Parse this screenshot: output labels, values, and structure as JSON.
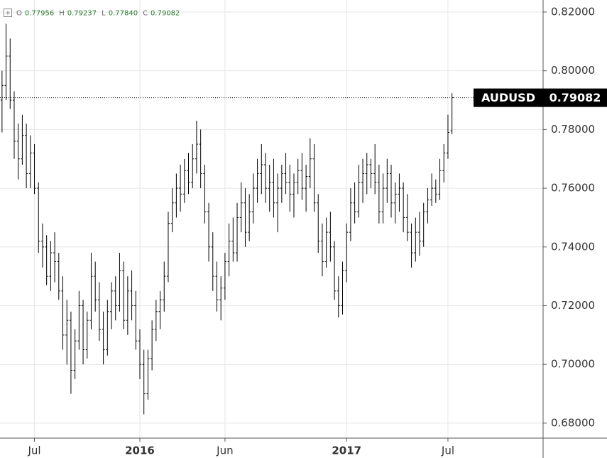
{
  "chart_data": {
    "type": "ohlc",
    "symbol": "AUDUSD",
    "legend_labels": [
      "O",
      "H",
      "L",
      "C"
    ],
    "legend_values": [
      "0.77956",
      "0.79237",
      "0.77840",
      "0.79082"
    ],
    "categories": [
      null,
      null,
      null,
      null,
      null,
      null,
      null,
      null,
      "Jul",
      null,
      null,
      null,
      null,
      null,
      null,
      null,
      null,
      null,
      null,
      null,
      null,
      null,
      null,
      null,
      null,
      null,
      null,
      null,
      null,
      null,
      null,
      null,
      null,
      null,
      "2016",
      null,
      null,
      null,
      null,
      null,
      null,
      null,
      null,
      null,
      null,
      null,
      null,
      null,
      null,
      null,
      null,
      null,
      null,
      null,
      null,
      "Jun",
      null,
      null,
      null,
      null,
      null,
      null,
      null,
      null,
      null,
      null,
      null,
      null,
      null,
      null,
      null,
      null,
      null,
      null,
      null,
      null,
      null,
      null,
      null,
      null,
      null,
      null,
      null,
      null,
      null,
      "2017",
      null,
      null,
      null,
      null,
      null,
      null,
      null,
      null,
      null,
      null,
      null,
      null,
      null,
      null,
      null,
      null,
      null,
      null,
      null,
      null,
      null,
      null,
      null,
      null,
      "Jul",
      null
    ],
    "open": [
      0.79,
      0.795,
      0.805,
      0.79,
      0.776,
      0.77,
      0.778,
      0.765,
      0.772,
      0.76,
      0.742,
      0.74,
      0.73,
      0.738,
      0.735,
      0.725,
      0.71,
      0.715,
      0.698,
      0.708,
      0.72,
      0.705,
      0.715,
      0.73,
      0.722,
      0.712,
      0.705,
      0.718,
      0.725,
      0.72,
      0.732,
      0.715,
      0.725,
      0.72,
      0.708,
      0.7,
      0.69,
      0.702,
      0.712,
      0.718,
      0.722,
      0.73,
      0.748,
      0.755,
      0.76,
      0.758,
      0.766,
      0.762,
      0.77,
      0.775,
      0.765,
      0.752,
      0.74,
      0.73,
      0.722,
      0.726,
      0.735,
      0.742,
      0.738,
      0.75,
      0.755,
      0.745,
      0.752,
      0.76,
      0.765,
      0.768,
      0.76,
      0.762,
      0.755,
      0.76,
      0.765,
      0.762,
      0.758,
      0.762,
      0.766,
      0.76,
      0.764,
      0.77,
      0.755,
      0.742,
      0.735,
      0.745,
      0.74,
      0.725,
      0.72,
      0.732,
      0.745,
      0.755,
      0.752,
      0.762,
      0.765,
      0.768,
      0.765,
      0.762,
      0.752,
      0.76,
      0.765,
      0.755,
      0.758,
      0.76,
      0.75,
      0.745,
      0.738,
      0.745,
      0.742,
      0.752,
      0.756,
      0.76,
      0.758,
      0.766,
      0.772,
      0.77956
    ],
    "high": [
      0.8,
      0.816,
      0.811,
      0.793,
      0.782,
      0.785,
      0.782,
      0.778,
      0.775,
      0.762,
      0.748,
      0.744,
      0.742,
      0.745,
      0.738,
      0.73,
      0.722,
      0.718,
      0.712,
      0.725,
      0.722,
      0.718,
      0.738,
      0.735,
      0.728,
      0.718,
      0.722,
      0.728,
      0.73,
      0.738,
      0.735,
      0.73,
      0.732,
      0.725,
      0.712,
      0.705,
      0.705,
      0.715,
      0.722,
      0.725,
      0.735,
      0.752,
      0.76,
      0.765,
      0.768,
      0.77,
      0.772,
      0.775,
      0.783,
      0.78,
      0.768,
      0.755,
      0.745,
      0.735,
      0.73,
      0.738,
      0.748,
      0.75,
      0.755,
      0.762,
      0.76,
      0.758,
      0.765,
      0.77,
      0.775,
      0.772,
      0.768,
      0.77,
      0.765,
      0.768,
      0.772,
      0.768,
      0.765,
      0.77,
      0.772,
      0.768,
      0.777,
      0.775,
      0.758,
      0.748,
      0.75,
      0.752,
      0.742,
      0.73,
      0.735,
      0.748,
      0.76,
      0.762,
      0.768,
      0.77,
      0.772,
      0.77,
      0.775,
      0.768,
      0.765,
      0.77,
      0.768,
      0.762,
      0.765,
      0.762,
      0.758,
      0.748,
      0.75,
      0.752,
      0.755,
      0.76,
      0.765,
      0.763,
      0.77,
      0.775,
      0.785,
      0.79237
    ],
    "low": [
      0.779,
      0.79,
      0.787,
      0.77,
      0.763,
      0.768,
      0.76,
      0.76,
      0.758,
      0.738,
      0.733,
      0.727,
      0.725,
      0.728,
      0.722,
      0.705,
      0.7,
      0.69,
      0.695,
      0.705,
      0.7,
      0.702,
      0.712,
      0.718,
      0.708,
      0.7,
      0.703,
      0.712,
      0.715,
      0.718,
      0.712,
      0.71,
      0.715,
      0.705,
      0.695,
      0.683,
      0.688,
      0.698,
      0.708,
      0.712,
      0.718,
      0.728,
      0.745,
      0.75,
      0.752,
      0.755,
      0.758,
      0.76,
      0.765,
      0.76,
      0.748,
      0.735,
      0.725,
      0.718,
      0.715,
      0.722,
      0.73,
      0.735,
      0.735,
      0.745,
      0.74,
      0.742,
      0.748,
      0.755,
      0.758,
      0.755,
      0.752,
      0.75,
      0.745,
      0.755,
      0.758,
      0.752,
      0.75,
      0.758,
      0.756,
      0.752,
      0.76,
      0.752,
      0.738,
      0.73,
      0.733,
      0.735,
      0.722,
      0.716,
      0.717,
      0.728,
      0.742,
      0.748,
      0.75,
      0.755,
      0.758,
      0.76,
      0.758,
      0.748,
      0.748,
      0.755,
      0.75,
      0.748,
      0.752,
      0.745,
      0.742,
      0.733,
      0.735,
      0.737,
      0.74,
      0.748,
      0.754,
      0.755,
      0.756,
      0.762,
      0.77,
      0.7784
    ],
    "close": [
      0.795,
      0.805,
      0.79,
      0.776,
      0.77,
      0.778,
      0.765,
      0.772,
      0.76,
      0.742,
      0.74,
      0.73,
      0.738,
      0.735,
      0.725,
      0.71,
      0.715,
      0.698,
      0.708,
      0.72,
      0.705,
      0.715,
      0.73,
      0.722,
      0.712,
      0.705,
      0.718,
      0.725,
      0.72,
      0.732,
      0.715,
      0.725,
      0.72,
      0.708,
      0.7,
      0.69,
      0.702,
      0.712,
      0.718,
      0.722,
      0.73,
      0.748,
      0.755,
      0.76,
      0.758,
      0.766,
      0.762,
      0.77,
      0.775,
      0.765,
      0.752,
      0.74,
      0.73,
      0.722,
      0.726,
      0.735,
      0.742,
      0.738,
      0.75,
      0.755,
      0.745,
      0.752,
      0.76,
      0.765,
      0.768,
      0.76,
      0.762,
      0.755,
      0.76,
      0.765,
      0.762,
      0.758,
      0.762,
      0.766,
      0.76,
      0.764,
      0.77,
      0.755,
      0.742,
      0.735,
      0.745,
      0.74,
      0.725,
      0.72,
      0.732,
      0.745,
      0.755,
      0.752,
      0.762,
      0.765,
      0.768,
      0.765,
      0.762,
      0.752,
      0.76,
      0.765,
      0.755,
      0.758,
      0.76,
      0.75,
      0.745,
      0.738,
      0.745,
      0.742,
      0.752,
      0.756,
      0.76,
      0.758,
      0.766,
      0.772,
      0.779,
      0.79082
    ],
    "color": "#000000",
    "ylim": [
      0.6749,
      0.8241
    ],
    "yticks": [
      {
        "value": 0.68,
        "label": "0.68000"
      },
      {
        "value": 0.7,
        "label": "0.70000"
      },
      {
        "value": 0.72,
        "label": "0.72000"
      },
      {
        "value": 0.74,
        "label": "0.74000"
      },
      {
        "value": 0.76,
        "label": "0.76000"
      },
      {
        "value": 0.78,
        "label": "0.78000"
      },
      {
        "value": 0.8,
        "label": "0.80000"
      },
      {
        "value": 0.82,
        "label": "0.82000"
      }
    ],
    "grid": true
  }
}
